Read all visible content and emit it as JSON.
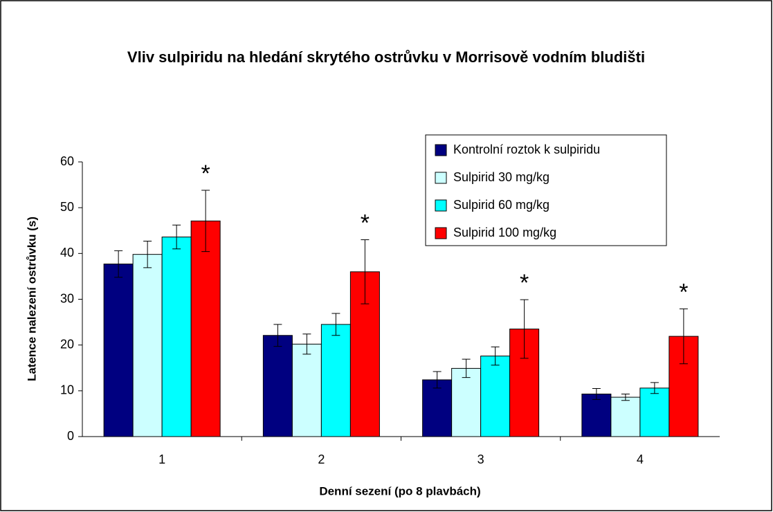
{
  "chart_data": {
    "type": "bar",
    "title": "Vliv sulpiridu na hledání skrytého ostrůvku v Morrisově vodním bludišti",
    "xlabel": "Denní sezení (po 8 plavbách)",
    "ylabel": "Latence nalezení ostrůvku (s)",
    "categories": [
      "1",
      "2",
      "3",
      "4"
    ],
    "series": [
      {
        "name": "Kontrolní roztok k sulpiridu",
        "color": "#000080",
        "values": [
          37.7,
          22.1,
          12.4,
          9.3
        ],
        "errors": [
          2.9,
          2.4,
          1.8,
          1.2
        ]
      },
      {
        "name": "Sulpirid 30 mg/kg",
        "color": "#ccffff",
        "values": [
          39.8,
          20.2,
          14.9,
          8.6
        ],
        "errors": [
          2.9,
          2.2,
          2.0,
          0.7
        ]
      },
      {
        "name": "Sulpirid 60 mg/kg",
        "color": "#00ffff",
        "values": [
          43.6,
          24.5,
          17.6,
          10.6
        ],
        "errors": [
          2.6,
          2.4,
          2.0,
          1.2
        ]
      },
      {
        "name": "Sulpirid 100 mg/kg",
        "color": "#ff0000",
        "values": [
          47.1,
          36.0,
          23.5,
          21.9
        ],
        "errors": [
          6.7,
          7.0,
          6.4,
          6.0
        ]
      }
    ],
    "annotations": [
      "*",
      "*",
      "*",
      "*"
    ],
    "ylim": [
      0,
      60
    ],
    "yticks": [
      0,
      10,
      20,
      30,
      40,
      50,
      60
    ],
    "grid": false,
    "legend": "upper right"
  }
}
